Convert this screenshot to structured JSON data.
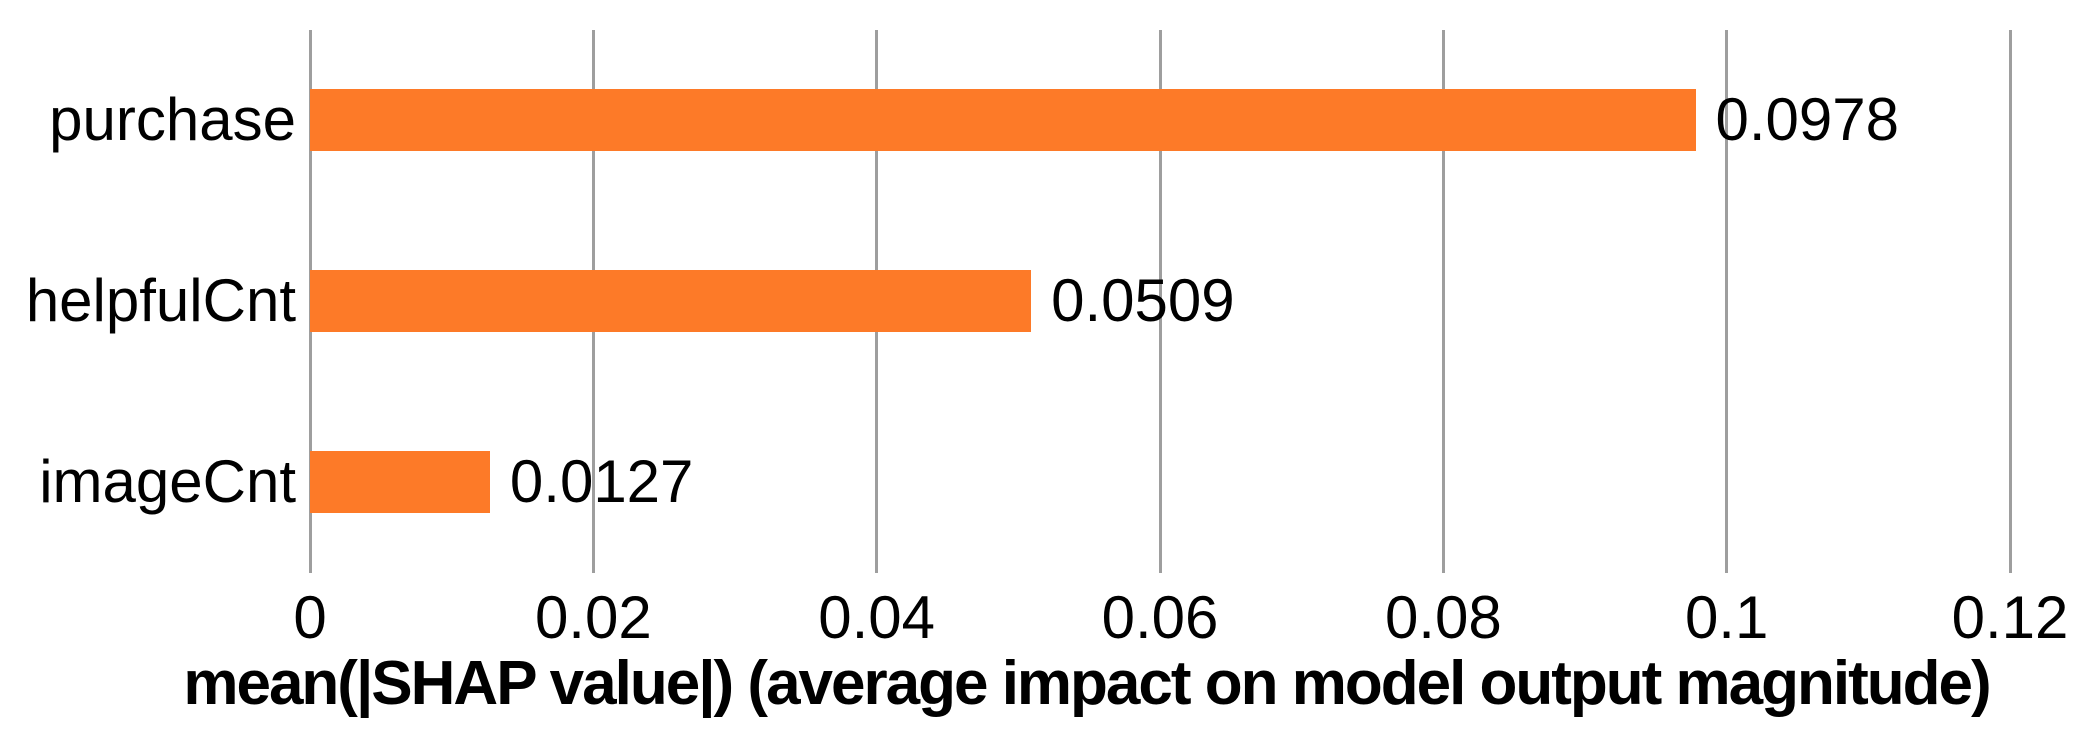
{
  "chart_data": {
    "type": "bar",
    "orientation": "horizontal",
    "categories": [
      "purchase",
      "helpfulCnt",
      "imageCnt"
    ],
    "values": [
      0.0978,
      0.0509,
      0.0127
    ],
    "value_labels": [
      "0.0978",
      "0.0509",
      "0.0127"
    ],
    "title": "",
    "xlabel": "mean(|SHAP value|) (average impact on model output magnitude)",
    "ylabel": "",
    "xlim": [
      0,
      0.12
    ],
    "xticks": [
      0,
      0.02,
      0.04,
      0.06,
      0.08,
      0.1,
      0.12
    ],
    "xtick_labels": [
      "0",
      "0.02",
      "0.04",
      "0.06",
      "0.08",
      "0.1",
      "0.12"
    ],
    "grid": "vertical-only",
    "legend": "none",
    "bar_color": "#fd7a28",
    "gridline_color": "#9e9e9e",
    "text_color": "#000000"
  }
}
